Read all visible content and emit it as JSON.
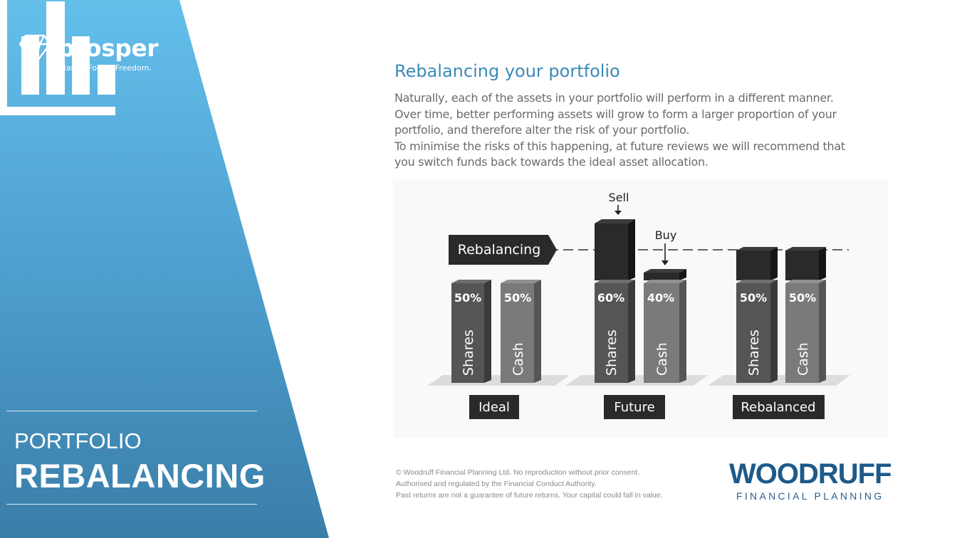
{
  "brand": {
    "name": "prosper",
    "tagline": "Clarity. Focus. Freedom."
  },
  "section_title": {
    "line1": "PORTFOLIO",
    "line2": "REBALANCING"
  },
  "main": {
    "heading": "Rebalancing your portfolio",
    "paragraph_lines": [
      "Naturally, each of the assets in your portfolio will perform in a different manner.",
      "Over time, better performing assets will grow to form a larger proportion of your",
      "portfolio, and therefore alter the risk of your portfolio.",
      "To minimise the risks of this happening, at future reviews we will recommend that",
      "you switch funds back towards the ideal asset allocation."
    ]
  },
  "diagram": {
    "rebalancing_label": "Rebalancing",
    "sell_label": "Sell",
    "buy_label": "Buy",
    "groups": [
      {
        "label": "Ideal",
        "bars": [
          {
            "name": "Shares",
            "pct": "50%"
          },
          {
            "name": "Cash",
            "pct": "50%"
          }
        ]
      },
      {
        "label": "Future",
        "bars": [
          {
            "name": "Shares",
            "pct": "60%"
          },
          {
            "name": "Cash",
            "pct": "40%"
          }
        ]
      },
      {
        "label": "Rebalanced",
        "bars": [
          {
            "name": "Shares",
            "pct": "50%"
          },
          {
            "name": "Cash",
            "pct": "50%"
          }
        ]
      }
    ]
  },
  "footer": {
    "lines": [
      "© Woodruff Financial Planning Ltd. No reproduction without prior consent.",
      "Authorised and regulated by the Financial Conduct Authority.",
      "Past returns are not a guarantee of future returns. Your capital could fall in value."
    ]
  },
  "company": {
    "name": "WOODRUFF",
    "subtitle": "FINANCIAL PLANNING"
  },
  "colors": {
    "panel_top": "#63bde9",
    "panel_bottom": "#3a80a9",
    "heading": "#3a8bb8",
    "bar_dark": "#2a2a2a",
    "bar_shares": "#555555",
    "bar_cash": "#7a7a7a",
    "company_blue": "#1d5a8a"
  }
}
